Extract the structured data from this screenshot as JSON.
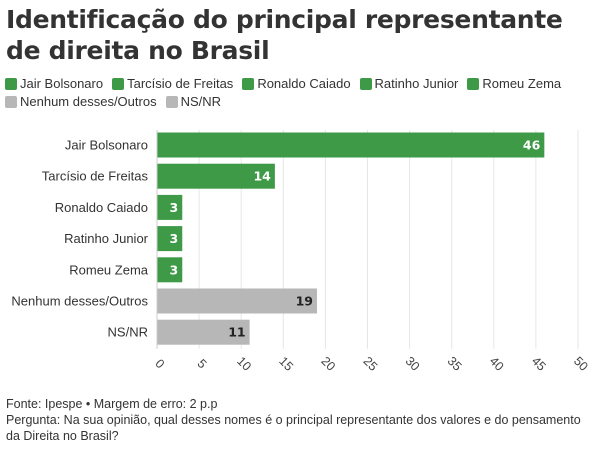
{
  "title": "Identificação do principal representante de direita no Brasil",
  "legend": [
    {
      "label": "Jair Bolsonaro",
      "color": "#3e9a47"
    },
    {
      "label": "Tarcísio de Freitas",
      "color": "#3e9a47"
    },
    {
      "label": "Ronaldo Caiado",
      "color": "#3e9a47"
    },
    {
      "label": "Ratinho Junior",
      "color": "#3e9a47"
    },
    {
      "label": "Romeu Zema",
      "color": "#3e9a47"
    },
    {
      "label": "Nenhum desses/Outros",
      "color": "#b7b7b7"
    },
    {
      "label": "NS/NR",
      "color": "#b7b7b7"
    }
  ],
  "chart_data": {
    "type": "bar",
    "orientation": "horizontal",
    "categories": [
      "Jair Bolsonaro",
      "Tarcísio de Freitas",
      "Ronaldo Caiado",
      "Ratinho Junior",
      "Romeu Zema",
      "Nenhum desses/Outros",
      "NS/NR"
    ],
    "values": [
      46,
      14,
      3,
      3,
      3,
      19,
      11
    ],
    "colors": [
      "#3e9a47",
      "#3e9a47",
      "#3e9a47",
      "#3e9a47",
      "#3e9a47",
      "#b7b7b7",
      "#b7b7b7"
    ],
    "label_colors": [
      "#ffffff",
      "#ffffff",
      "#ffffff",
      "#ffffff",
      "#ffffff",
      "#222222",
      "#222222"
    ],
    "xlim": [
      0,
      50
    ],
    "xticks": [
      0,
      5,
      10,
      15,
      20,
      25,
      30,
      35,
      40,
      45,
      50
    ],
    "grid": true,
    "legend_position": "top"
  },
  "footer": {
    "source": "Fonte: Ipespe • Margem de erro: 2 p.p",
    "question": "Pergunta: Na sua opinião, qual desses nomes é o principal representante dos valores e do pensamento da Direita no Brasil?"
  }
}
